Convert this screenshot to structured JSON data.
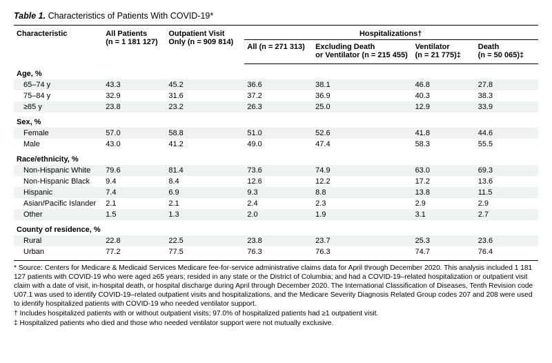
{
  "title_prefix": "Table 1.",
  "title_rest": " Characteristics of Patients With COVID-19*",
  "columns": {
    "char": "Characteristic",
    "all": "All Patients",
    "all_n": "(n = 1 181 127)",
    "out": "Outpatient Visit",
    "out2": "Only (n = 909 814)",
    "hosp": "Hospitalizations†",
    "h_all": "All (n = 271 313)",
    "h_excl1": "Excluding Death",
    "h_excl2": "or Ventilator (n = 215 455)",
    "h_vent1": "Ventilator",
    "h_vent2": "(n = 21 775)‡",
    "h_death1": "Death",
    "h_death2": "(n = 50 065)‡"
  },
  "sections": [
    {
      "label": "Age, %",
      "rows": [
        {
          "label": "65–74 y",
          "v": [
            "43.3",
            "45.2",
            "36.6",
            "38.1",
            "46.8",
            "27.8"
          ],
          "shade": true
        },
        {
          "label": "75–84 y",
          "v": [
            "32.9",
            "31.6",
            "37.2",
            "36.9",
            "40.3",
            "38.3"
          ]
        },
        {
          "label": "≥85 y",
          "v": [
            "23.8",
            "23.2",
            "26.3",
            "25.0",
            "12.9",
            "33.9"
          ],
          "shade": true
        }
      ]
    },
    {
      "label": "Sex, %",
      "rows": [
        {
          "label": "Female",
          "v": [
            "57.0",
            "58.8",
            "51.0",
            "52.6",
            "41.8",
            "44.6"
          ],
          "shade": true
        },
        {
          "label": "Male",
          "v": [
            "43.0",
            "41.2",
            "49.0",
            "47.4",
            "58.3",
            "55.5"
          ]
        }
      ]
    },
    {
      "label": "Race/ethnicity, %",
      "rows": [
        {
          "label": "Non-Hispanic White",
          "v": [
            "79.6",
            "81.4",
            "73.6",
            "74.9",
            "63.0",
            "69.3"
          ],
          "shade": true
        },
        {
          "label": "Non-Hispanic Black",
          "v": [
            "9.4",
            "8.4",
            "12.6",
            "12.2",
            "17.2",
            "13.6"
          ]
        },
        {
          "label": "Hispanic",
          "v": [
            "7.4",
            "6.9",
            "9.3",
            "8.8",
            "13.8",
            "11.5"
          ],
          "shade": true
        },
        {
          "label": "Asian/Pacific Islander",
          "v": [
            "2.1",
            "2.1",
            "2.4",
            "2.3",
            "2.9",
            "2.9"
          ]
        },
        {
          "label": "Other",
          "v": [
            "1.5",
            "1.3",
            "2.0",
            "1.9",
            "3.1",
            "2.7"
          ],
          "shade": true
        }
      ]
    },
    {
      "label": "County of residence, %",
      "rows": [
        {
          "label": "Rural",
          "v": [
            "22.8",
            "22.5",
            "23.8",
            "23.7",
            "25.3",
            "23.6"
          ],
          "shade": true
        },
        {
          "label": "Urban",
          "v": [
            "77.2",
            "77.5",
            "76.3",
            "76.3",
            "74.7",
            "76.4"
          ],
          "last": true
        }
      ]
    }
  ],
  "footnotes": [
    "* Source: Centers for Medicare & Medicaid Services Medicare fee-for-service administrative claims data for April through December 2020. This analysis included 1 181 127 patients with COVID-19 who were aged ≥65 years; resided in any state or the District of Columbia; and had a COVID-19–related hospitalization or outpatient visit claim with a date of visit, in-hospital death, or hospital discharge during April through December 2020. The International Classification of Diseases, Tenth Revision code U07.1 was used to identify COVID-19–related outpatient visits and hospitalizations, and the Medicare Severity Diagnosis Related Group codes 207 and 208 were used to identify hospitalized patients with COVID-19 who needed ventilator support.",
    "† Includes hospitalized patients with or without outpatient visits; 97.0% of hospitalized patients had ≥1 outpatient visit.",
    "‡ Hospitalized patients who died and those who needed ventilator support were not mutually exclusive."
  ],
  "colwidths": [
    "17%",
    "12%",
    "15%",
    "13%",
    "19%",
    "12%",
    "12%"
  ]
}
